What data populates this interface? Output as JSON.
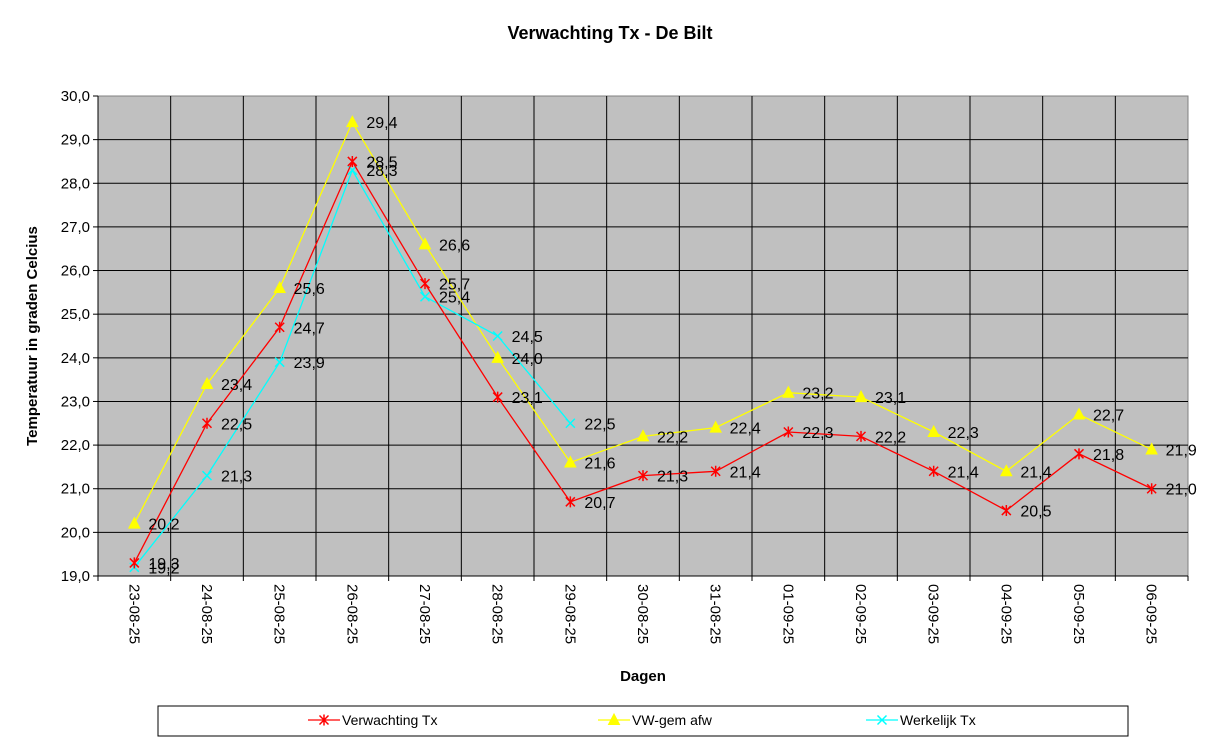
{
  "chart_data": {
    "type": "line",
    "title": "Verwachting Tx - De Bilt",
    "xlabel": "Dagen",
    "ylabel": "Temperatuur in graden Celcius",
    "ylim": [
      19.0,
      30.0
    ],
    "ytick_step": 1.0,
    "grid": true,
    "legend_position": "bottom",
    "categories": [
      "23-08-25",
      "24-08-25",
      "25-08-25",
      "26-08-25",
      "27-08-25",
      "28-08-25",
      "29-08-25",
      "30-08-25",
      "31-08-25",
      "01-09-25",
      "02-09-25",
      "03-09-25",
      "04-09-25",
      "05-09-25",
      "06-09-25"
    ],
    "series": [
      {
        "name": "Verwachting Tx",
        "color": "#ff0000",
        "marker": "star",
        "values": [
          19.3,
          22.5,
          24.7,
          28.5,
          25.7,
          23.1,
          20.7,
          21.3,
          21.4,
          22.3,
          22.2,
          21.4,
          20.5,
          21.8,
          21.0
        ],
        "labels": [
          "19,3",
          "22,5",
          "24,7",
          "28,5",
          "25,7",
          "23,1",
          "20,7",
          "21,3",
          "21,4",
          "22,3",
          "22,2",
          "21,4",
          "20,5",
          "21,8",
          "21,0"
        ]
      },
      {
        "name": "VW-gem afw",
        "color": "#ffff00",
        "marker": "triangle",
        "values": [
          20.2,
          23.4,
          25.6,
          29.4,
          26.6,
          24.0,
          21.6,
          22.2,
          22.4,
          23.2,
          23.1,
          22.3,
          21.4,
          22.7,
          21.9
        ],
        "labels": [
          "20,2",
          "23,4",
          "25,6",
          "29,4",
          "26,6",
          "24,0",
          "21,6",
          "22,2",
          "22,4",
          "23,2",
          "23,1",
          "22,3",
          "21,4",
          "22,7",
          "21,9"
        ]
      },
      {
        "name": "Werkelijk Tx",
        "color": "#00ffff",
        "marker": "x",
        "values": [
          19.2,
          21.3,
          23.9,
          28.3,
          25.4,
          24.5,
          22.5,
          null,
          null,
          null,
          null,
          null,
          null,
          null,
          null
        ],
        "labels": [
          "19,2",
          "21,3",
          "23,9",
          "28,3",
          "25,4",
          "24,5",
          "22,5",
          null,
          null,
          null,
          null,
          null,
          null,
          null,
          null
        ]
      }
    ],
    "colors": {
      "plot_background": "#c0c0c0",
      "grid": "#000000"
    }
  }
}
